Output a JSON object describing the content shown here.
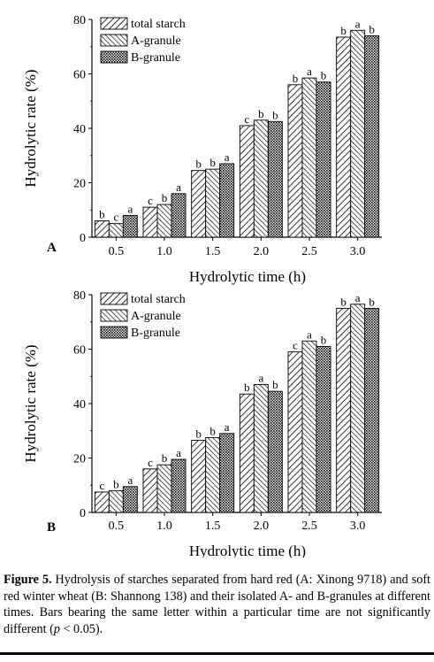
{
  "chart_data": [
    {
      "type": "bar",
      "panel_label": "A",
      "categories": [
        "0.5",
        "1.0",
        "1.5",
        "2.0",
        "2.5",
        "3.0"
      ],
      "series": [
        {
          "name": "total starch",
          "values": [
            6.0,
            11.0,
            24.5,
            41.0,
            56.0,
            73.5
          ],
          "letters": [
            "b",
            "c",
            "b",
            "c",
            "b",
            "b"
          ]
        },
        {
          "name": "A-granule",
          "values": [
            5.0,
            12.0,
            25.0,
            43.0,
            58.5,
            76.0
          ],
          "letters": [
            "c",
            "b",
            "b",
            "b",
            "a",
            "a"
          ]
        },
        {
          "name": "B-granule",
          "values": [
            8.0,
            16.0,
            27.0,
            42.5,
            57.0,
            74.0
          ],
          "letters": [
            "a",
            "a",
            "a",
            "b",
            "b",
            "b"
          ]
        }
      ],
      "xlabel": "Hydrolytic time (h)",
      "ylabel": "Hydrolytic rate (%)",
      "ylim": [
        0,
        80
      ],
      "yticks": [
        "0",
        "20",
        "40",
        "60",
        "80"
      ],
      "legend_position": "top-left",
      "grid": false
    },
    {
      "type": "bar",
      "panel_label": "B",
      "categories": [
        "0.5",
        "1.0",
        "1.5",
        "2.0",
        "2.5",
        "3.0"
      ],
      "series": [
        {
          "name": "total starch",
          "values": [
            7.5,
            16.0,
            26.5,
            43.5,
            59.0,
            75.0
          ],
          "letters": [
            "c",
            "c",
            "b",
            "b",
            "c",
            "b"
          ]
        },
        {
          "name": "A-granule",
          "values": [
            8.0,
            17.5,
            27.5,
            47.0,
            63.0,
            76.5
          ],
          "letters": [
            "b",
            "b",
            "b",
            "a",
            "a",
            "a"
          ]
        },
        {
          "name": "B-granule",
          "values": [
            9.5,
            19.5,
            29.0,
            44.5,
            61.0,
            75.0
          ],
          "letters": [
            "a",
            "a",
            "a",
            "b",
            "b",
            "b"
          ]
        }
      ],
      "xlabel": "Hydrolytic time (h)",
      "ylabel": "Hydrolytic rate (%)",
      "ylim": [
        0,
        80
      ],
      "yticks": [
        "0",
        "20",
        "40",
        "60",
        "80"
      ],
      "legend_position": "top-left",
      "grid": false
    }
  ],
  "caption": {
    "label": "Figure 5.",
    "text": " Hydrolysis of starches separated from hard red (A: Xinong 9718) and soft red winter wheat (B: Shannong 138) and their isolated A- and B-granules at different times. Bars bearing the same letter within a particular time are not significantly different (",
    "p_symbol": "p",
    "text_end": " < 0.05)."
  }
}
